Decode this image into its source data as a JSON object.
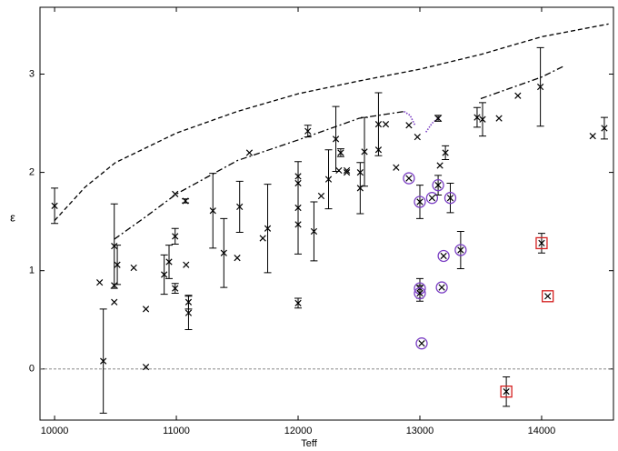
{
  "chart_data": {
    "type": "scatter",
    "x_label": "Teff",
    "y_label": "ε",
    "xlim": [
      9880,
      14590
    ],
    "ylim": [
      -0.52,
      3.68
    ],
    "xticks": [
      10000,
      11000,
      12000,
      13000,
      14000
    ],
    "yticks": [
      0,
      1,
      2,
      3
    ],
    "reference_line": 0,
    "series": [
      {
        "marker": "x",
        "color": "#000000",
        "x": [
          10000,
          10370,
          10400,
          10490,
          10490,
          10490,
          10515,
          10650,
          10750,
          10750,
          10900,
          10940,
          10990,
          10990,
          10990,
          11075,
          11080,
          11100,
          11100,
          11300,
          11390,
          11500,
          11520,
          11600,
          11710,
          11750,
          12000,
          12000,
          12000,
          12000,
          12000,
          12080,
          12130,
          12190,
          12250,
          12310,
          12350,
          12335,
          12400,
          12400,
          12510,
          12510,
          12545,
          12660,
          12660,
          12720,
          12805,
          12910,
          12980,
          13165,
          13210,
          13150,
          13470,
          13515,
          13650,
          13805,
          13990,
          14420,
          14515
        ],
        "values": [
          1.66,
          0.88,
          0.08,
          1.25,
          0.85,
          0.68,
          1.06,
          1.03,
          0.61,
          0.02,
          0.96,
          1.09,
          1.78,
          1.35,
          0.82,
          1.71,
          1.06,
          0.68,
          0.57,
          1.61,
          1.18,
          1.13,
          1.65,
          2.2,
          1.33,
          1.43,
          1.96,
          1.89,
          1.64,
          1.47,
          0.67,
          2.42,
          1.4,
          1.76,
          1.93,
          2.34,
          2.2,
          2.02,
          2.02,
          2.0,
          2.0,
          1.84,
          2.21,
          2.23,
          2.49,
          2.49,
          2.05,
          2.48,
          2.36,
          2.07,
          2.2,
          2.55,
          2.56,
          2.54,
          2.55,
          2.78,
          2.87,
          2.37,
          2.45
        ],
        "errors": [
          0.18,
          null,
          0.53,
          0.43,
          null,
          null,
          0.2,
          null,
          null,
          null,
          0.2,
          0.17,
          null,
          0.08,
          0.05,
          0.02,
          null,
          0.07,
          0.17,
          0.38,
          0.35,
          null,
          0.26,
          null,
          null,
          0.45,
          null,
          null,
          0.47,
          null,
          0.05,
          0.06,
          0.3,
          null,
          0.3,
          0.33,
          0.04,
          null,
          null,
          null,
          null,
          0.26,
          0.35,
          null,
          0.32,
          null,
          null,
          null,
          null,
          null,
          0.07,
          0.03,
          0.1,
          0.17,
          null,
          null,
          0.4,
          null,
          0.11
        ]
      },
      {
        "marker": "circled-x",
        "color": "#7b3fc4",
        "x": [
          12910,
          13000,
          13100,
          13150,
          13250,
          13195,
          13180,
          13335,
          13000,
          13000,
          13015
        ],
        "values": [
          1.94,
          1.7,
          1.74,
          1.87,
          1.74,
          1.15,
          0.83,
          1.21,
          0.82,
          0.77,
          0.26
        ],
        "errors": [
          null,
          0.17,
          null,
          0.1,
          0.15,
          null,
          null,
          0.19,
          0.1,
          0.08,
          null
        ]
      },
      {
        "marker": "boxed-x",
        "color": "#d42020",
        "x": [
          14000,
          14050,
          13710
        ],
        "values": [
          1.28,
          0.74,
          -0.23
        ],
        "errors": [
          0.1,
          null,
          0.15
        ]
      }
    ],
    "curves": [
      {
        "style": "dashed",
        "color": "#000000",
        "x": [
          10000,
          10250,
          10500,
          11000,
          11500,
          12000,
          12500,
          13000,
          13500,
          14000,
          14550
        ],
        "values": [
          1.51,
          1.85,
          2.1,
          2.4,
          2.62,
          2.8,
          2.93,
          3.05,
          3.2,
          3.38,
          3.51
        ]
      },
      {
        "style": "dashdot",
        "color": "#000000",
        "x": [
          10490,
          10750,
          11000,
          11250,
          11500,
          12000,
          12500,
          12870,
          13160,
          13500,
          14000,
          14180
        ],
        "values": [
          1.32,
          1.55,
          1.78,
          1.95,
          2.12,
          2.33,
          2.55,
          2.62,
          null,
          2.75,
          2.97,
          3.08
        ]
      },
      {
        "style": "dotted",
        "color": "#7b3fc4",
        "x": [
          12870,
          12920,
          12960,
          13010,
          13050,
          13100,
          13160
        ],
        "values": [
          2.62,
          2.58,
          2.48,
          null,
          2.41,
          2.5,
          2.56
        ]
      }
    ]
  }
}
